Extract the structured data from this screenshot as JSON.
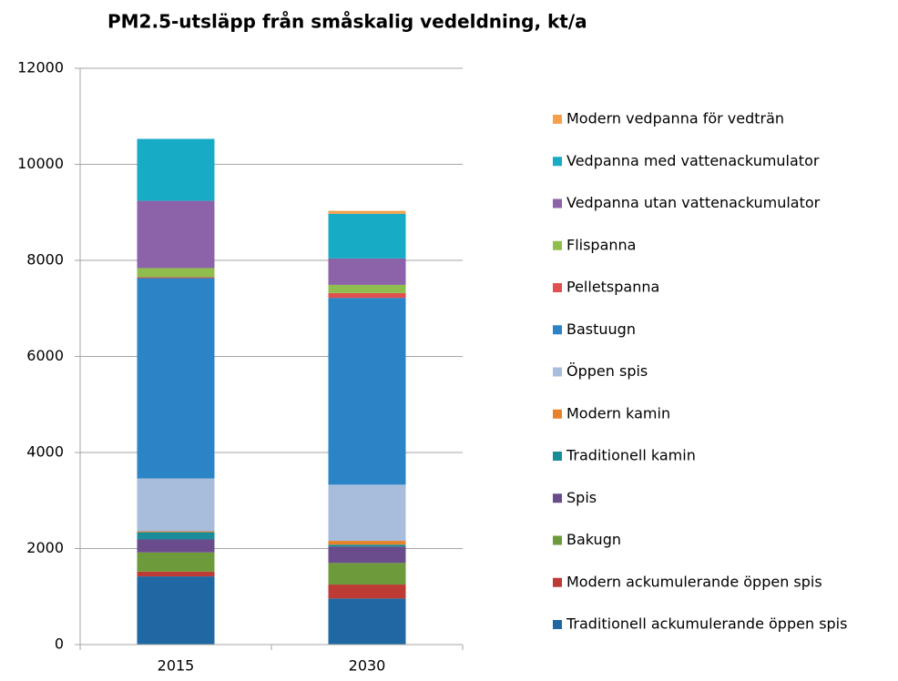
{
  "chart_data": {
    "type": "stacked_bar",
    "title": "PM2.5-utsläpp från småskalig vedeldning, kt/a",
    "categories": [
      "2015",
      "2030"
    ],
    "series": [
      {
        "name": "Traditionell ackumulerande öppen spis",
        "color": "#1f68a3",
        "values": [
          1420,
          960
        ]
      },
      {
        "name": "Modern ackumulerande öppen spis",
        "color": "#be3a34",
        "values": [
          100,
          290
        ]
      },
      {
        "name": "Bakugn",
        "color": "#6d9a3a",
        "values": [
          400,
          450
        ]
      },
      {
        "name": "Spis",
        "color": "#6a4c8c",
        "values": [
          270,
          340
        ]
      },
      {
        "name": "Traditionell kamin",
        "color": "#1a8c99",
        "values": [
          150,
          40
        ]
      },
      {
        "name": "Modern kamin",
        "color": "#e8822a",
        "values": [
          20,
          80
        ]
      },
      {
        "name": "Öppen spis",
        "color": "#a8bcdc",
        "values": [
          1100,
          1170
        ]
      },
      {
        "name": "Bastuugn",
        "color": "#2a84c6",
        "values": [
          4170,
          3890
        ]
      },
      {
        "name": "Pelletspanna",
        "color": "#e0504e",
        "values": [
          20,
          100
        ]
      },
      {
        "name": "Flispanna",
        "color": "#8fbe4e",
        "values": [
          190,
          170
        ]
      },
      {
        "name": "Vedpanna utan vattenackumulator",
        "color": "#8c62a8",
        "values": [
          1400,
          550
        ]
      },
      {
        "name": "Vedpanna med vattenackumulator",
        "color": "#17abc6",
        "values": [
          1290,
          930
        ]
      },
      {
        "name": "Modern vedpanna för vedträn",
        "color": "#f5a04a",
        "values": [
          0,
          60
        ]
      }
    ],
    "ylim": [
      0,
      12000
    ],
    "yticks": [
      0,
      2000,
      4000,
      6000,
      8000,
      10000,
      12000
    ],
    "grid": true
  }
}
